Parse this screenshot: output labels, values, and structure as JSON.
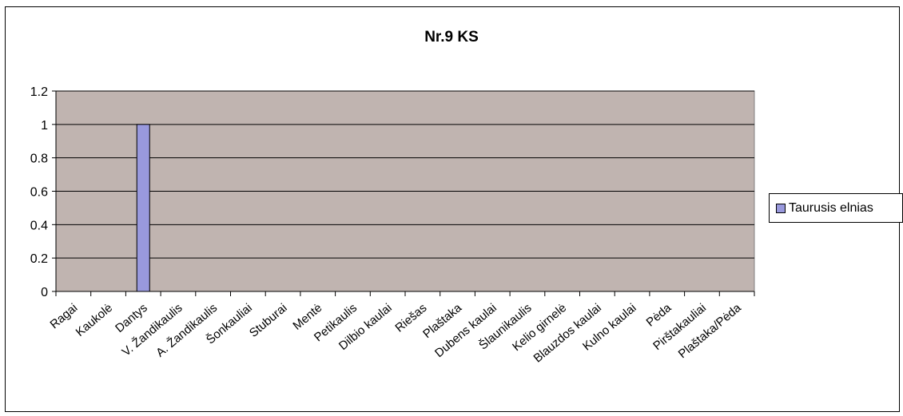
{
  "chart_data": {
    "type": "bar",
    "title": "Nr.9 KS",
    "xlabel": "",
    "ylabel": "",
    "ylim": [
      0,
      1.2
    ],
    "yticks": [
      "0",
      "0.2",
      "0.4",
      "0.6",
      "0.8",
      "1",
      "1.2"
    ],
    "categories": [
      "Ragai",
      "Kaukolė",
      "Dantys",
      "V. Žandikaulis",
      "A. Žandikaulis",
      "Šonkauliai",
      "Stuburai",
      "Mentė",
      "Petikaulis",
      "Dilbio kaulai",
      "Riešas",
      "Plaštaka",
      "Dubens kaulai",
      "Šlaunikaulis",
      "Kelio girnelė",
      "Blauzdos kaulai",
      "Kulno kaulai",
      "Pėda",
      "Pirštakauliai",
      "Plaštaka/Pėda"
    ],
    "series": [
      {
        "name": "Taurusis elnias",
        "values": [
          0,
          0,
          1,
          0,
          0,
          0,
          0,
          0,
          0,
          0,
          0,
          0,
          0,
          0,
          0,
          0,
          0,
          0,
          0,
          0
        ]
      }
    ],
    "grid": true,
    "legend_position": "right"
  },
  "colors": {
    "plot_background": "#c0b4b0",
    "bar_fill": "#9999dd",
    "grid": "#000000"
  }
}
